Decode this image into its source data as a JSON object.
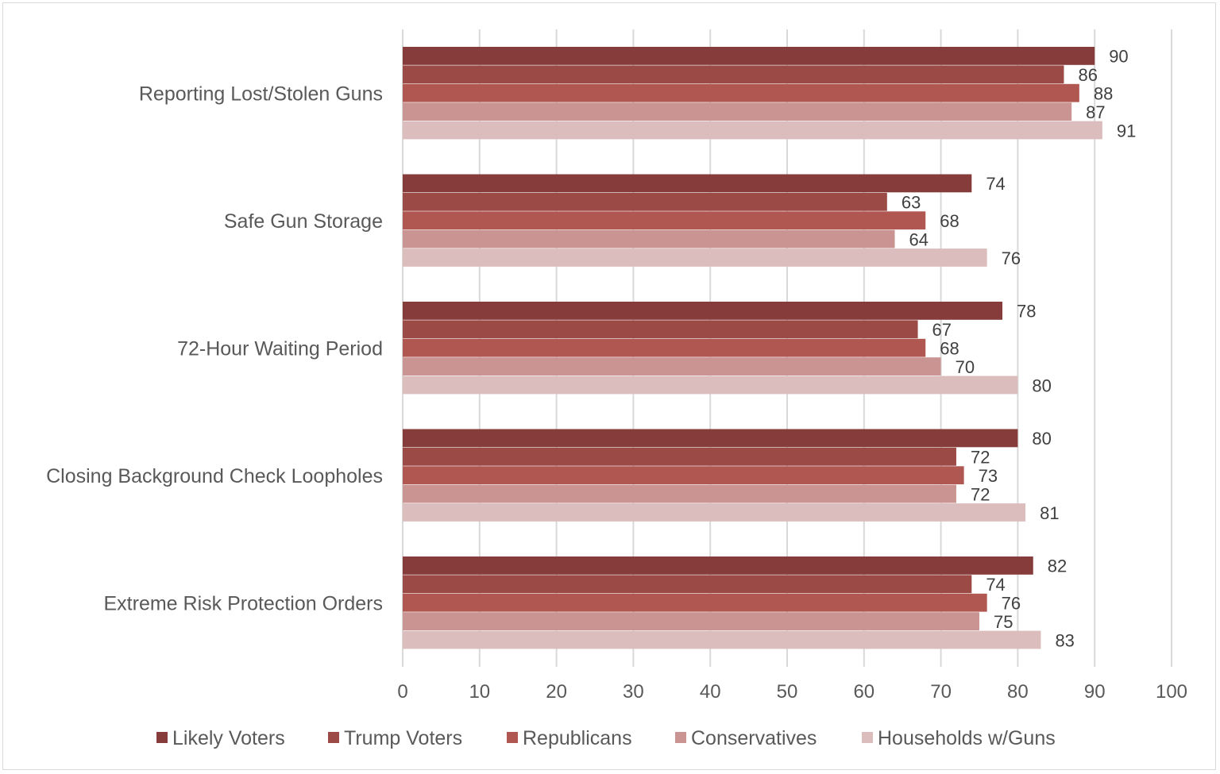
{
  "chart_data": {
    "type": "bar",
    "orientation": "horizontal",
    "title": "",
    "xlabel": "",
    "ylabel": "",
    "xlim": [
      0,
      100
    ],
    "xticks": [
      0,
      10,
      20,
      30,
      40,
      50,
      60,
      70,
      80,
      90,
      100
    ],
    "grid": "vertical",
    "legend_position": "bottom",
    "data_labels": true,
    "categories": [
      "Reporting Lost/Stolen Guns",
      "Safe Gun Storage",
      "72-Hour Waiting Period",
      "Closing Background Check Loopholes",
      "Extreme Risk Protection Orders"
    ],
    "series": [
      {
        "name": "Likely Voters",
        "color": "#853C3A",
        "values": [
          90,
          74,
          78,
          80,
          82
        ]
      },
      {
        "name": "Trump Voters",
        "color": "#9C4A46",
        "values": [
          86,
          63,
          67,
          72,
          74
        ]
      },
      {
        "name": "Republicans",
        "color": "#B15752",
        "values": [
          88,
          68,
          68,
          73,
          76
        ]
      },
      {
        "name": "Conservatives",
        "color": "#C99492",
        "values": [
          87,
          64,
          70,
          72,
          75
        ]
      },
      {
        "name": "Households w/Guns",
        "color": "#DBBDBD",
        "values": [
          91,
          76,
          80,
          81,
          83
        ]
      }
    ]
  }
}
